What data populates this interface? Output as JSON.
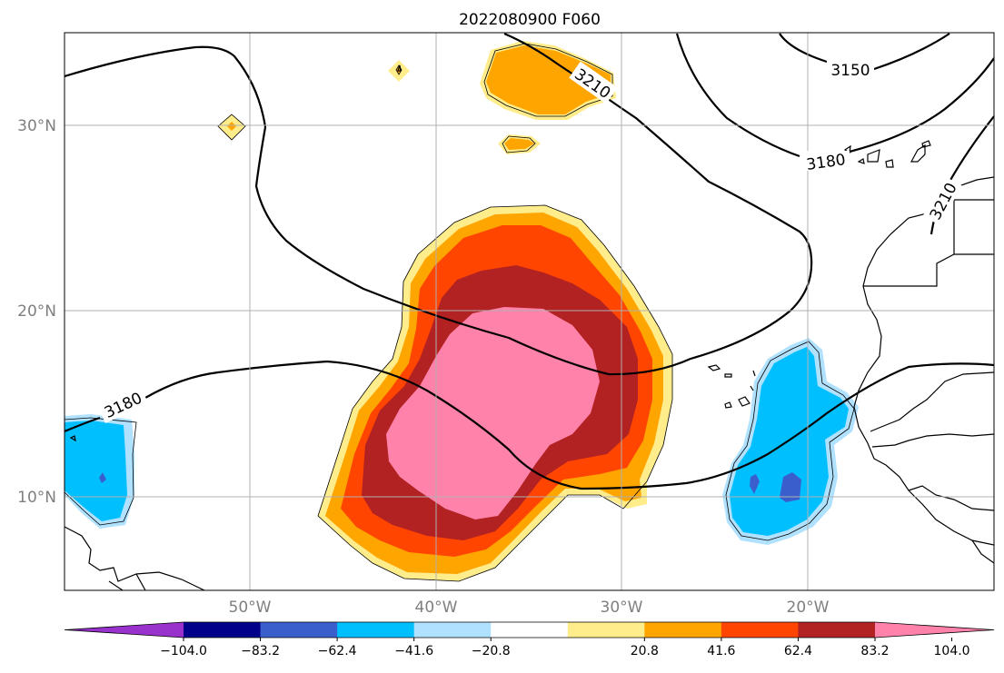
{
  "title": "2022080900 F060",
  "axes": {
    "lon_ticks": [
      "50°W",
      "40°W",
      "30°W",
      "20°W"
    ],
    "lat_ticks": [
      "30°N",
      "20°N",
      "10°N"
    ]
  },
  "contours": {
    "labels": [
      "3150",
      "3180",
      "3210",
      "3210",
      "3180"
    ]
  },
  "colorbar": {
    "ticks": [
      "−104.0",
      "−83.2",
      "−62.4",
      "−41.6",
      "−20.8",
      "20.8",
      "41.6",
      "62.4",
      "83.2",
      "104.0"
    ],
    "colors": [
      "#9932cc",
      "#00008b",
      "#3a5fcd",
      "#00bfff",
      "#b0e2ff",
      "#ffffff",
      "#ffec8b",
      "#ffa500",
      "#ff4500",
      "#b22222",
      "#ff82ab"
    ]
  }
}
